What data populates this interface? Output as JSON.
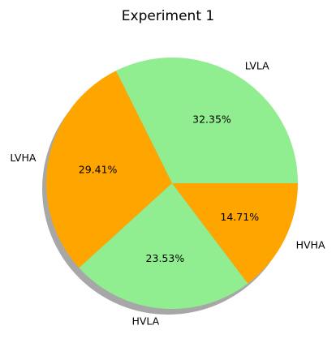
{
  "chart_data": {
    "type": "pie",
    "title": "Experiment 1",
    "categories": [
      "LVLA",
      "LVHA",
      "HVLA",
      "HVHA"
    ],
    "values": [
      32.35,
      29.41,
      23.53,
      14.71
    ],
    "value_labels": [
      "32.35%",
      "29.41%",
      "23.53%",
      "14.71%"
    ],
    "colors": [
      "#90ee90",
      "#ffa500",
      "#90ee90",
      "#ffa500"
    ],
    "shadow": true,
    "start_angle_deg": 0,
    "direction": "counterclockwise"
  }
}
